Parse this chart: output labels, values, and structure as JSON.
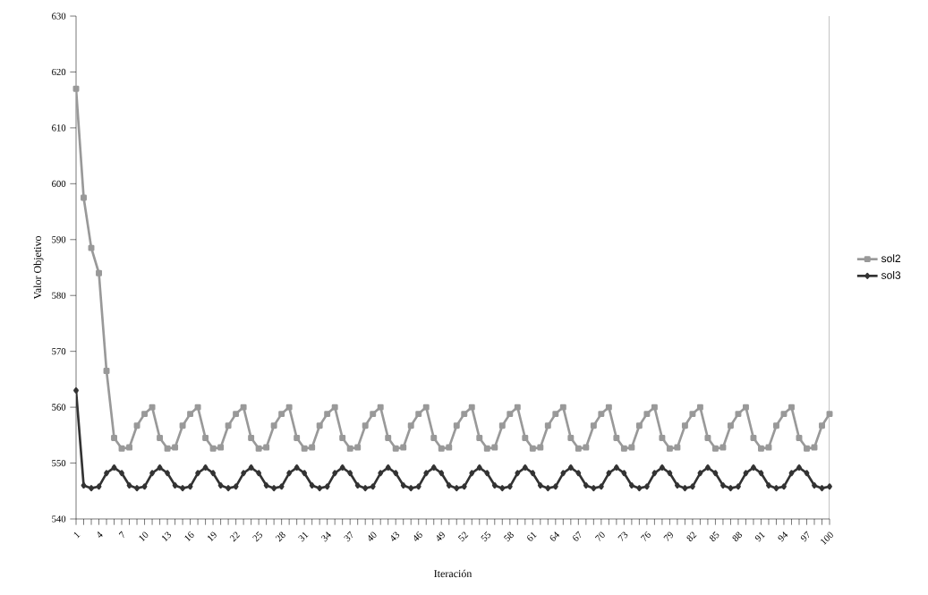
{
  "chart_data": {
    "type": "line",
    "xlabel": "Iteración",
    "ylabel": "Valor Objetivo",
    "categories": [
      "1",
      null,
      null,
      "4",
      null,
      null,
      "7",
      null,
      null,
      "10",
      null,
      null,
      "13",
      null,
      null,
      "16",
      null,
      null,
      "19",
      null,
      null,
      "22",
      null,
      null,
      "25",
      null,
      null,
      "28",
      null,
      null,
      "31",
      null,
      null,
      "34",
      null,
      null,
      "37",
      null,
      null,
      "40",
      null,
      null,
      "43",
      null,
      null,
      "46",
      null,
      null,
      "49",
      null,
      null,
      "52",
      null,
      null,
      "55",
      null,
      null,
      "58",
      null,
      null,
      "61",
      null,
      null,
      "64",
      null,
      null,
      "67",
      null,
      null,
      "70",
      null,
      null,
      "73",
      null,
      null,
      "76",
      null,
      null,
      "79",
      null,
      null,
      "82",
      null,
      null,
      "85",
      null,
      null,
      "88",
      null,
      null,
      "91",
      null,
      null,
      "94",
      null,
      null,
      "97",
      null,
      null,
      "100"
    ],
    "series": [
      {
        "name": "sol2",
        "color": "#999999",
        "marker": "square",
        "values": [
          617,
          597.5,
          588.5,
          584,
          566.5,
          554.5,
          552.6,
          552.8,
          556.7,
          558.8,
          560,
          554.5,
          552.6,
          552.8,
          556.7,
          558.8,
          560,
          554.5,
          552.6,
          552.8,
          556.7,
          558.8,
          560,
          554.5,
          552.6,
          552.8,
          556.7,
          558.8,
          560,
          554.5,
          552.6,
          552.8,
          556.7,
          558.8,
          560,
          554.5,
          552.6,
          552.8,
          556.7,
          558.8,
          560,
          554.5,
          552.6,
          552.8,
          556.7,
          558.8,
          560,
          554.5,
          552.6,
          552.8,
          556.7,
          558.8,
          560,
          554.5,
          552.6,
          552.8,
          556.7,
          558.8,
          560,
          554.5,
          552.6,
          552.8,
          556.7,
          558.8,
          560,
          554.5,
          552.6,
          552.8,
          556.7,
          558.8,
          560,
          554.5,
          552.6,
          552.8,
          556.7,
          558.8,
          560,
          554.5,
          552.6,
          552.8,
          556.7,
          558.8,
          560,
          554.5,
          552.6,
          552.8,
          556.7,
          558.8,
          560,
          554.5,
          552.6,
          552.8,
          556.7,
          558.8,
          560,
          554.5,
          552.6,
          552.8,
          556.7,
          558.8
        ]
      },
      {
        "name": "sol3",
        "color": "#333333",
        "marker": "diamond",
        "values": [
          563,
          546,
          545.5,
          545.8,
          548.2,
          549.2,
          548.2,
          546,
          545.5,
          545.8,
          548.2,
          549.2,
          548.2,
          546,
          545.5,
          545.8,
          548.2,
          549.2,
          548.2,
          546,
          545.5,
          545.8,
          548.2,
          549.2,
          548.2,
          546,
          545.5,
          545.8,
          548.2,
          549.2,
          548.2,
          546,
          545.5,
          545.8,
          548.2,
          549.2,
          548.2,
          546,
          545.5,
          545.8,
          548.2,
          549.2,
          548.2,
          546,
          545.5,
          545.8,
          548.2,
          549.2,
          548.2,
          546,
          545.5,
          545.8,
          548.2,
          549.2,
          548.2,
          546,
          545.5,
          545.8,
          548.2,
          549.2,
          548.2,
          546,
          545.5,
          545.8,
          548.2,
          549.2,
          548.2,
          546,
          545.5,
          545.8,
          548.2,
          549.2,
          548.2,
          546,
          545.5,
          545.8,
          548.2,
          549.2,
          548.2,
          546,
          545.5,
          545.8,
          548.2,
          549.2,
          548.2,
          546,
          545.5,
          545.8,
          548.2,
          549.2,
          548.2,
          546,
          545.5,
          545.8,
          548.2,
          549.2,
          548.2,
          546,
          545.5,
          545.8
        ]
      }
    ],
    "ylim": [
      540,
      630
    ],
    "yticks": [
      540,
      550,
      560,
      570,
      580,
      590,
      600,
      610,
      620,
      630
    ],
    "legend": "right"
  }
}
